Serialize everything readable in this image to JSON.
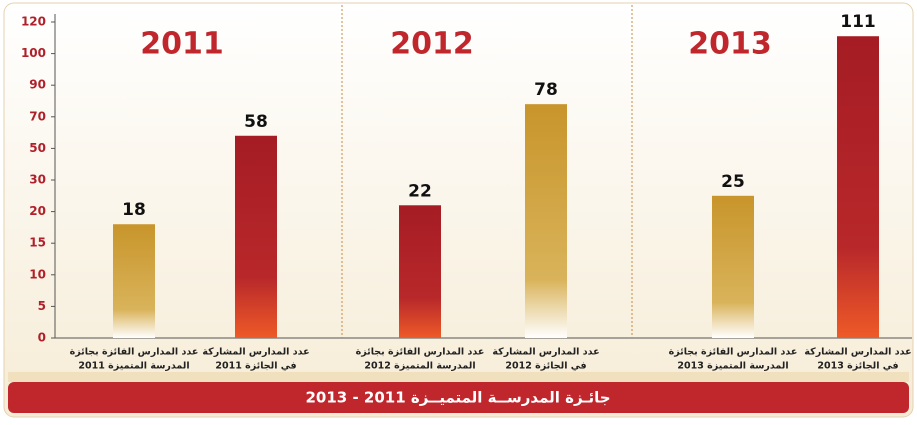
{
  "chart_data": {
    "type": "bar",
    "title": "جائـزة المدرســة المتميــزة 2011 - 2013",
    "groups": [
      "2011",
      "2012",
      "2013"
    ],
    "categories": [
      [
        "عدد المدارس الفائزة بجائزة",
        "المدرسة المتميزة 2011"
      ],
      [
        "عدد المدارس المشاركة",
        "في الجائزة 2011"
      ],
      [
        "عدد المدارس الفائزة بجائزة",
        "المدرسة المتميزة 2012"
      ],
      [
        "عدد المدارس المشاركة",
        "في الجائزة 2012"
      ],
      [
        "عدد المدارس الفائزة بجائزة",
        "المدرسة المتميزة 2013"
      ],
      [
        "عدد المدارس المشاركة",
        "في الجائزة 2013"
      ]
    ],
    "values": [
      18,
      58,
      22,
      78,
      25,
      111
    ],
    "colors": [
      "gold",
      "red",
      "red",
      "gold",
      "gold",
      "red"
    ],
    "ylim": [
      0,
      120
    ],
    "yticks": [
      0,
      5,
      10,
      15,
      20,
      30,
      50,
      70,
      90,
      100,
      120
    ]
  }
}
